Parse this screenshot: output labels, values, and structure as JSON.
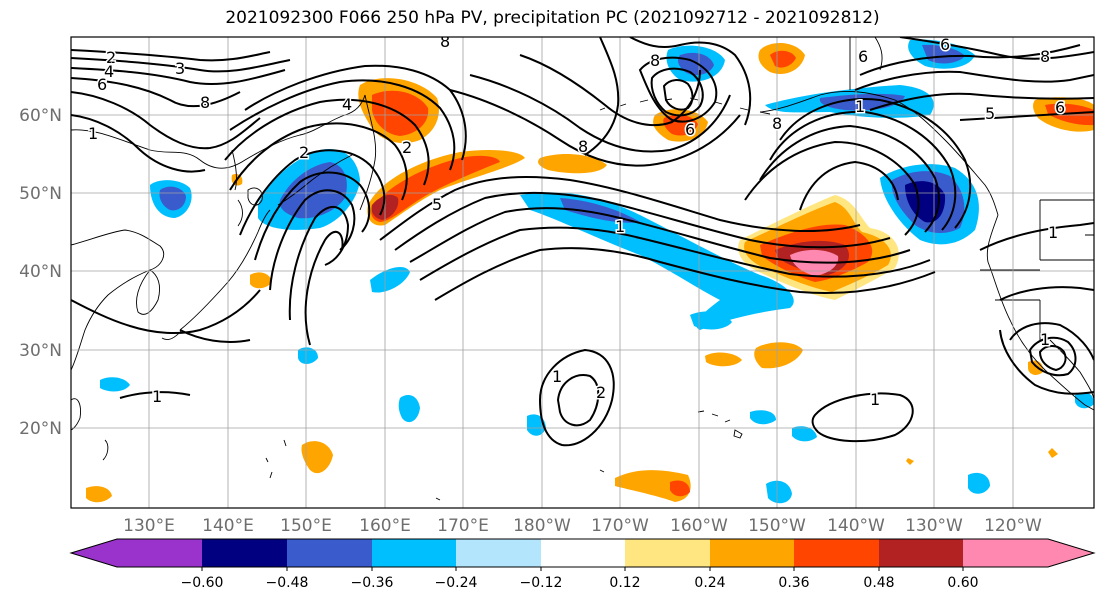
{
  "title": "2021092300 F066 250 hPa PV, precipitation PC (2021092712 - 2021092812)",
  "lat_labels": [
    "60°N",
    "50°N",
    "40°N",
    "30°N",
    "20°N"
  ],
  "lon_labels": [
    "130°E",
    "140°E",
    "150°E",
    "160°E",
    "170°E",
    "180°W",
    "170°W",
    "160°W",
    "150°W",
    "140°W",
    "130°W",
    "120°W"
  ],
  "colorbar": {
    "tick_labels": [
      "−0.60",
      "−0.48",
      "−0.36",
      "−0.24",
      "−0.12",
      "0.12",
      "0.24",
      "0.36",
      "0.48",
      "0.60"
    ],
    "colors": [
      "#9933cc",
      "#000080",
      "#3a5bcc",
      "#00bfff",
      "#b3e5fc",
      "#ffffff",
      "#ffe680",
      "#ffa500",
      "#ff4500",
      "#b22222",
      "#ff88b0"
    ]
  },
  "contour_labels": [
    "2",
    "4",
    "6",
    "3",
    "8",
    "1",
    "2",
    "4",
    "2",
    "8",
    "5",
    "6",
    "8",
    "1",
    "8",
    "6",
    "6",
    "5",
    "1",
    "8",
    "8",
    "6",
    "1",
    "1",
    "2",
    "1",
    "1",
    "1"
  ],
  "colors": {
    "gridline": "#a0a0a0",
    "coastline": "#000000",
    "contour": "#000000"
  }
}
